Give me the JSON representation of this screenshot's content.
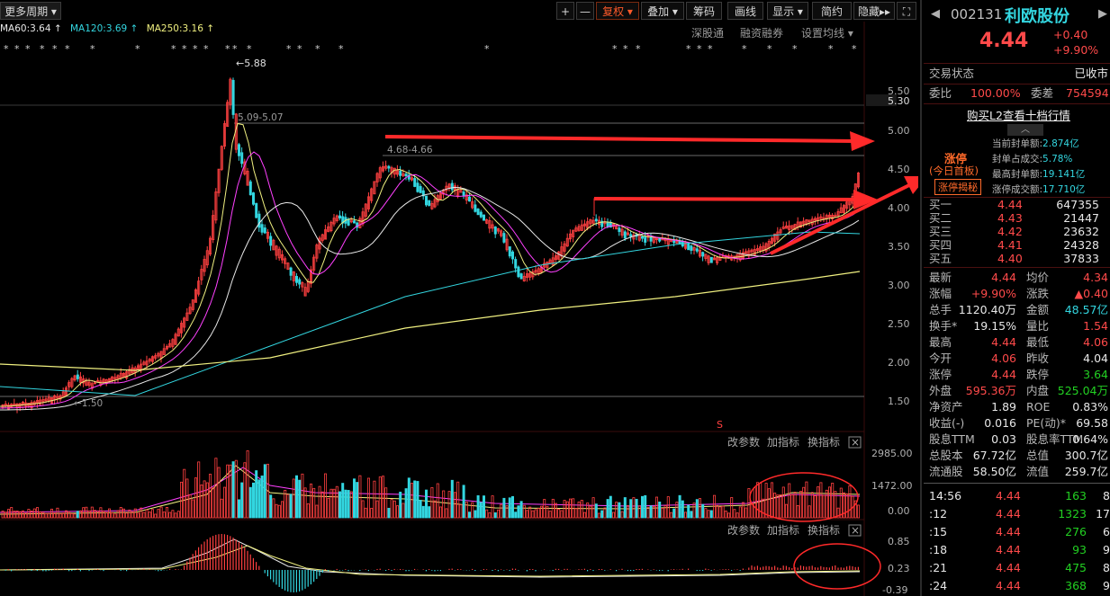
{
  "toolbar": {
    "period": "更多周期",
    "plus": "+",
    "minus": "—",
    "fuquan": "复权",
    "diejia": "叠加",
    "chouma": "筹码",
    "huaxian": "画线",
    "xianshi": "显示",
    "jianyue": "简约",
    "yincang": "隐藏",
    "more": "▸▸",
    "fullscreen": "⛶"
  },
  "ma_legend": [
    {
      "text": "MA60:3.64 ↑",
      "color": "#e8e8e8"
    },
    {
      "text": "MA120:3.69 ↑",
      "color": "#33d6e0"
    },
    {
      "text": "MA250:3.16 ↑",
      "color": "#f0f080"
    }
  ],
  "chart_links": {
    "shengutong": "深股通",
    "rongzi": "融资融券",
    "shezhi": "设置均线 ▾"
  },
  "price_axis": [
    "5.50",
    "5.30",
    "5.00",
    "4.50",
    "4.00",
    "3.50",
    "3.00",
    "2.50",
    "2.00",
    "1.50"
  ],
  "annotations": {
    "high": "←5.88",
    "band1": "5.09-5.07",
    "band2": "4.68-4.66",
    "low": "←1.50",
    "s_mark": "S"
  },
  "vol_panel": {
    "adjust": "改参数",
    "add": "加指标",
    "swap": "换指标",
    "close": "×",
    "axis": [
      "2985.00",
      "1472.00",
      "0.00"
    ]
  },
  "macd_panel": {
    "adjust": "改参数",
    "add": "加指标",
    "swap": "换指标",
    "close": "×",
    "axis": [
      "0.85",
      "0.23",
      "-0.39"
    ]
  },
  "stock": {
    "code": "002131",
    "name": "利欧股份",
    "price": "4.44",
    "change": "+0.40",
    "pct": "+9.90%"
  },
  "status": {
    "label": "交易状态",
    "value": "已收市"
  },
  "weibi": {
    "label": "委比",
    "value": "100.00%",
    "label2": "委差",
    "value2": "754594"
  },
  "l2": "购买L2查看十档行情",
  "limit_up": {
    "tag1": "涨停",
    "tag2": "(今日首板)",
    "tag3": "涨停揭秘",
    "rows": [
      {
        "label": "当前封单额:",
        "value": "2.874亿"
      },
      {
        "label": "封单占成交:",
        "value": "5.78%"
      },
      {
        "label": "最高封单额:",
        "value": "19.141亿"
      },
      {
        "label": "涨停成交额:",
        "value": "17.710亿"
      }
    ]
  },
  "bids": [
    {
      "label": "买一",
      "price": "4.44",
      "vol": "647355"
    },
    {
      "label": "买二",
      "price": "4.43",
      "vol": "21447"
    },
    {
      "label": "买三",
      "price": "4.42",
      "vol": "23632"
    },
    {
      "label": "买四",
      "price": "4.41",
      "vol": "24328"
    },
    {
      "label": "买五",
      "price": "4.40",
      "vol": "37833"
    }
  ],
  "quote": [
    {
      "l1": "最新",
      "v1": "4.44",
      "c1": "red",
      "l2": "均价",
      "v2": "4.34",
      "c2": "red"
    },
    {
      "l1": "涨幅",
      "v1": "+9.90%",
      "c1": "red",
      "l2": "涨跌",
      "v2": "▲0.40",
      "c2": "red"
    },
    {
      "l1": "总手",
      "v1": "1120.40万",
      "c1": "white",
      "l2": "金额",
      "v2": "48.57亿",
      "c2": "cyan"
    },
    {
      "l1": "换手*",
      "v1": "19.15%",
      "c1": "white",
      "l2": "量比",
      "v2": "1.54",
      "c2": "red"
    },
    {
      "l1": "最高",
      "v1": "4.44",
      "c1": "red",
      "l2": "最低",
      "v2": "4.06",
      "c2": "red"
    },
    {
      "l1": "今开",
      "v1": "4.06",
      "c1": "red",
      "l2": "昨收",
      "v2": "4.04",
      "c2": "white"
    },
    {
      "l1": "涨停",
      "v1": "4.44",
      "c1": "red",
      "l2": "跌停",
      "v2": "3.64",
      "c2": "green"
    },
    {
      "l1": "外盘",
      "v1": "595.36万",
      "c1": "red",
      "l2": "内盘",
      "v2": "525.04万",
      "c2": "green"
    },
    {
      "l1": "净资产",
      "v1": "1.89",
      "c1": "white",
      "l2": "ROE",
      "v2": "0.83%",
      "c2": "white"
    },
    {
      "l1": "收益(-)",
      "v1": "0.016",
      "c1": "white",
      "l2": "PE(动)*",
      "v2": "69.58",
      "c2": "white"
    },
    {
      "l1": "股息TTM",
      "v1": "0.03",
      "c1": "white",
      "l2": "股息率TTM",
      "v2": "0.64%",
      "c2": "white"
    },
    {
      "l1": "总股本",
      "v1": "67.72亿",
      "c1": "white",
      "l2": "总值",
      "v2": "300.7亿",
      "c2": "white"
    },
    {
      "l1": "流通股",
      "v1": "58.50亿",
      "c1": "white",
      "l2": "流值",
      "v2": "259.7亿",
      "c2": "white"
    }
  ],
  "ticks": [
    {
      "time": "14:56",
      "price": "4.44",
      "vol": "163",
      "n": "8"
    },
    {
      "time": ":12",
      "price": "4.44",
      "vol": "1323",
      "n": "17"
    },
    {
      "time": ":15",
      "price": "4.44",
      "vol": "276",
      "n": "6"
    },
    {
      "time": ":18",
      "price": "4.44",
      "vol": "93",
      "n": "9"
    },
    {
      "time": ":21",
      "price": "4.44",
      "vol": "475",
      "n": "8"
    },
    {
      "time": ":24",
      "price": "4.44",
      "vol": "368",
      "n": "9"
    }
  ]
}
